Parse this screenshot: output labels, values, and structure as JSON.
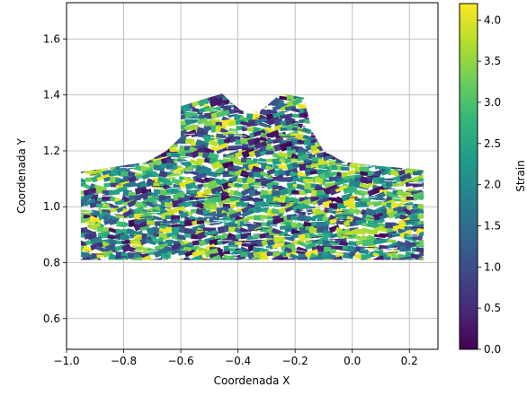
{
  "chart_data": {
    "type": "heatmap",
    "title": "",
    "xlabel": "Coordenada X",
    "ylabel": "Coordenada Y",
    "xlim": [
      -1.0,
      0.3
    ],
    "ylim": [
      0.49,
      1.73
    ],
    "x_ticks": [
      -1.0,
      -0.8,
      -0.6,
      -0.4,
      -0.2,
      0.0,
      0.2
    ],
    "x_tick_labels": [
      "−1.0",
      "−0.8",
      "−0.6",
      "−0.4",
      "−0.2",
      "0.0",
      "0.2"
    ],
    "y_ticks": [
      0.6,
      0.8,
      1.0,
      1.2,
      1.4,
      1.6
    ],
    "y_tick_labels": [
      "0.6",
      "0.8",
      "1.0",
      "1.2",
      "1.4",
      "1.6"
    ],
    "grid": true,
    "colorbar": {
      "label": "Strain",
      "colormap": "viridis",
      "range": [
        0.0,
        4.2
      ],
      "ticks": [
        0.0,
        0.5,
        1.0,
        1.5,
        2.0,
        2.5,
        3.0,
        3.5,
        4.0
      ],
      "tick_labels": [
        "0.0",
        "0.5",
        "1.0",
        "1.5",
        "2.0",
        "2.5",
        "3.0",
        "3.5",
        "4.0"
      ]
    },
    "mesh_outline": [
      [
        -0.95,
        0.81
      ],
      [
        0.25,
        0.81
      ],
      [
        0.25,
        1.13
      ],
      [
        0.22,
        1.135
      ],
      [
        0.1,
        1.145
      ],
      [
        -0.03,
        1.16
      ],
      [
        -0.1,
        1.2
      ],
      [
        -0.14,
        1.27
      ],
      [
        -0.17,
        1.39
      ],
      [
        -0.25,
        1.405
      ],
      [
        -0.29,
        1.37
      ],
      [
        -0.32,
        1.345
      ],
      [
        -0.36,
        1.335
      ],
      [
        -0.39,
        1.345
      ],
      [
        -0.42,
        1.37
      ],
      [
        -0.455,
        1.405
      ],
      [
        -0.6,
        1.36
      ],
      [
        -0.6,
        1.25
      ],
      [
        -0.65,
        1.2
      ],
      [
        -0.72,
        1.16
      ],
      [
        -0.85,
        1.14
      ],
      [
        -0.95,
        1.125
      ]
    ],
    "colors": {
      "viridis": [
        "#440154",
        "#482878",
        "#3e4989",
        "#31688e",
        "#26828e",
        "#1f9e89",
        "#35b779",
        "#6ece58",
        "#b5de2b",
        "#fde725"
      ],
      "grid": "#b0b0b0"
    }
  }
}
